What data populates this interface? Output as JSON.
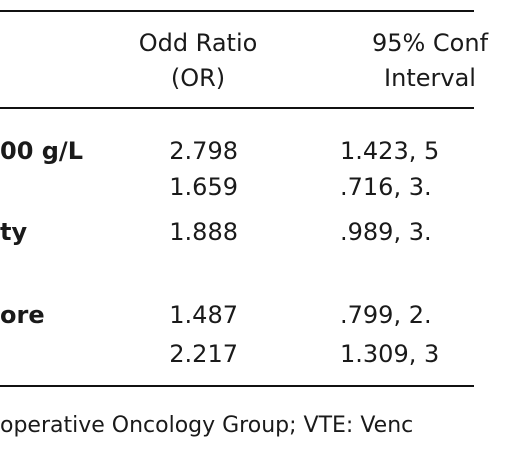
{
  "table": {
    "header": [
      "",
      "Odd Ratio\n(OR)",
      "95% Conf\nInterval"
    ],
    "rows": [
      [
        "00 g/L",
        "2.798",
        "1.423, 5"
      ],
      [
        "",
        "1.659",
        ".716, 3."
      ],
      [
        "ty",
        "1.888",
        ".989, 3."
      ],
      [
        "ore",
        "1.487",
        ".799, 2."
      ],
      [
        "",
        "2.217",
        "1.309, 3"
      ]
    ]
  },
  "footnote": "operative Oncology Group; VTE: Venc"
}
